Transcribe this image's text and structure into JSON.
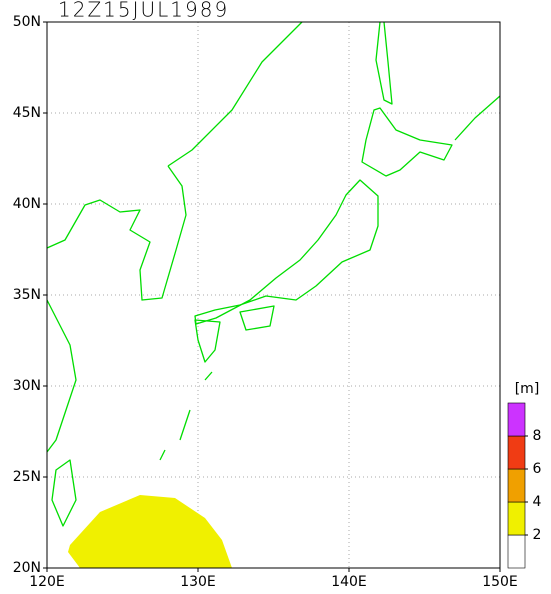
{
  "map": {
    "title": "12Z15JUL1989",
    "xlim": [
      120,
      150
    ],
    "ylim": [
      20,
      50
    ],
    "xticks": [
      {
        "value": 120,
        "label": "120E"
      },
      {
        "value": 130,
        "label": "130E"
      },
      {
        "value": 140,
        "label": "140E"
      },
      {
        "value": 150,
        "label": "150E"
      }
    ],
    "yticks": [
      {
        "value": 20,
        "label": "20N"
      },
      {
        "value": 25,
        "label": "25N"
      },
      {
        "value": 30,
        "label": "30N"
      },
      {
        "value": 35,
        "label": "35N"
      },
      {
        "value": 40,
        "label": "40N"
      },
      {
        "value": 45,
        "label": "45N"
      },
      {
        "value": 50,
        "label": "50N"
      }
    ],
    "grid": true
  },
  "legend": {
    "unit": "[m]",
    "levels": [
      2,
      4,
      6,
      8
    ],
    "colors": [
      "#ffffff",
      "#f0f000",
      "#f0a000",
      "#f03c14",
      "#cc33ff"
    ]
  }
}
